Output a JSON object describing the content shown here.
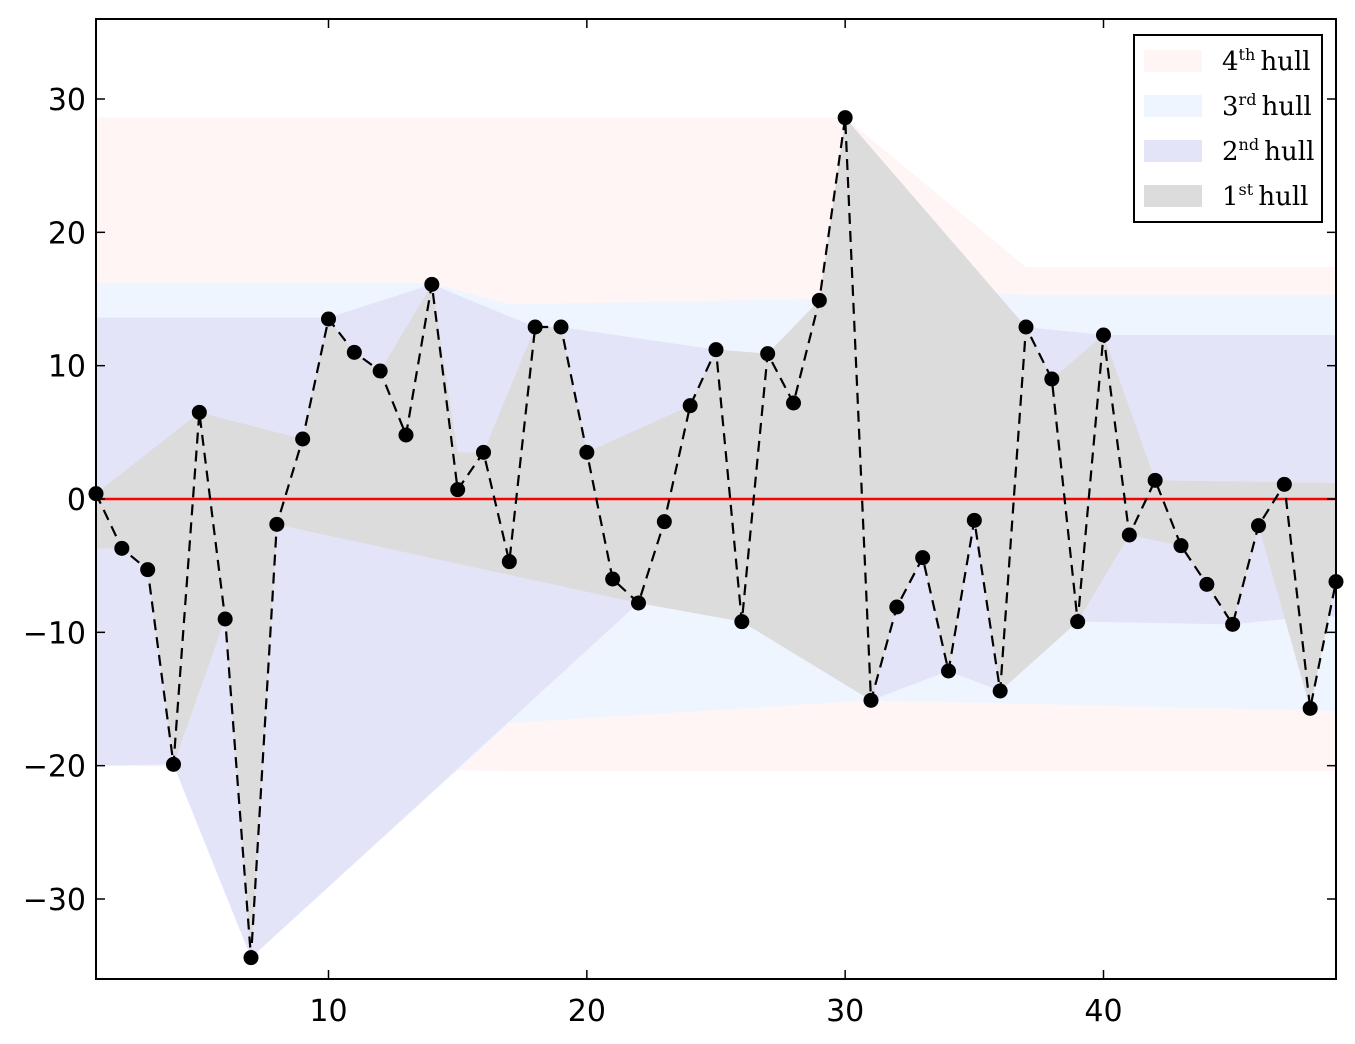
{
  "chart_data": {
    "type": "line",
    "title": "",
    "xlabel": "",
    "ylabel": "",
    "xlim": [
      1,
      49
    ],
    "ylim": [
      -36,
      36
    ],
    "xticks": [
      10,
      20,
      30,
      40
    ],
    "yticks": [
      -30,
      -20,
      -10,
      0,
      10,
      20,
      30
    ],
    "xtick_labels": [
      "10",
      "20",
      "30",
      "40"
    ],
    "ytick_labels": [
      "−30",
      "−20",
      "−10",
      "0",
      "10",
      "20",
      "30"
    ],
    "grid": false,
    "legend_position": "top-right",
    "zero_line": {
      "y": 0,
      "color": "#ff0000"
    },
    "series": [
      {
        "name": "",
        "style": "dashed line with circle markers",
        "color": "#000000",
        "x": [
          1,
          2,
          3,
          4,
          5,
          6,
          7,
          8,
          9,
          10,
          11,
          12,
          13,
          14,
          15,
          16,
          17,
          18,
          19,
          20,
          21,
          22,
          23,
          24,
          25,
          26,
          27,
          28,
          29,
          30,
          31,
          32,
          33,
          34,
          35,
          36,
          37,
          38,
          39,
          40,
          41,
          42,
          43,
          44,
          45,
          46,
          47,
          48,
          49
        ],
        "y": [
          0.4,
          -3.7,
          -5.3,
          -19.9,
          6.5,
          -9.0,
          -34.4,
          -1.9,
          4.5,
          13.5,
          11.0,
          9.6,
          4.8,
          16.1,
          0.7,
          3.5,
          -4.7,
          12.9,
          12.9,
          3.5,
          -6.0,
          -7.8,
          -1.7,
          7.0,
          11.2,
          -9.2,
          10.9,
          7.2,
          14.9,
          28.6,
          -15.1,
          -8.1,
          -4.4,
          -12.9,
          -1.6,
          -14.4,
          12.9,
          9.0,
          -9.2,
          12.3,
          -2.7,
          1.4,
          -3.5,
          -6.4,
          -9.4,
          -2.0,
          1.1,
          -15.7,
          -6.2
        ]
      }
    ],
    "hulls": [
      {
        "name": "4th hull",
        "label_number": "4",
        "label_sup": "th",
        "label_word": "hull",
        "color": "#fff5f5",
        "upper": [
          [
            1,
            28.6
          ],
          [
            30,
            28.6
          ],
          [
            37,
            17.4
          ],
          [
            49,
            17.4
          ]
        ],
        "lower": [
          [
            1,
            -20.0
          ],
          [
            17,
            -20.4
          ],
          [
            49,
            -20.4
          ]
        ]
      },
      {
        "name": "3rd hull",
        "label_number": "3",
        "label_sup": "rd",
        "label_word": "hull",
        "color": "#eef5ff",
        "upper": [
          [
            1,
            16.2
          ],
          [
            14,
            16.2
          ],
          [
            17,
            14.6
          ],
          [
            29,
            15.0
          ],
          [
            30,
            16.0
          ],
          [
            37,
            15.3
          ],
          [
            49,
            15.3
          ]
        ],
        "lower": [
          [
            1,
            -20.0
          ],
          [
            4,
            -20.0
          ],
          [
            7,
            -34.4
          ],
          [
            17,
            -16.8
          ],
          [
            31,
            -15.1
          ],
          [
            49,
            -15.9
          ]
        ]
      },
      {
        "name": "2nd hull",
        "label_number": "2",
        "label_sup": "nd",
        "label_word": "hull",
        "color": "#e4e4f8",
        "upper": [
          [
            1,
            13.6
          ],
          [
            10,
            13.6
          ],
          [
            14,
            16.1
          ],
          [
            18,
            12.9
          ],
          [
            19,
            12.9
          ],
          [
            25,
            11.2
          ],
          [
            27,
            10.9
          ],
          [
            29,
            14.9
          ],
          [
            30,
            16.0
          ],
          [
            37,
            12.9
          ],
          [
            40,
            12.3
          ],
          [
            49,
            12.3
          ]
        ],
        "lower": [
          [
            1,
            -20.0
          ],
          [
            4,
            -19.9
          ],
          [
            7,
            -34.4
          ],
          [
            22,
            -7.8
          ],
          [
            26,
            -9.2
          ],
          [
            31,
            -15.1
          ],
          [
            34,
            -12.9
          ],
          [
            36,
            -14.4
          ],
          [
            39,
            -9.2
          ],
          [
            45,
            -9.4
          ],
          [
            48,
            -8.8
          ],
          [
            49,
            -8.8
          ]
        ]
      },
      {
        "name": "1st hull",
        "label_number": "1",
        "label_sup": "st",
        "label_word": "hull",
        "color": "#dcdcdc",
        "upper": [
          [
            1,
            0.4
          ],
          [
            5,
            6.5
          ],
          [
            9,
            4.5
          ],
          [
            10,
            13.5
          ],
          [
            11,
            11.0
          ],
          [
            12,
            9.6
          ],
          [
            14,
            16.1
          ],
          [
            15,
            3.5
          ],
          [
            16,
            3.5
          ],
          [
            18,
            12.9
          ],
          [
            19,
            12.9
          ],
          [
            20,
            3.5
          ],
          [
            24,
            7.0
          ],
          [
            25,
            11.2
          ],
          [
            27,
            10.9
          ],
          [
            29,
            14.9
          ],
          [
            30,
            28.6
          ],
          [
            37,
            12.9
          ],
          [
            38,
            9.0
          ],
          [
            40,
            12.3
          ],
          [
            42,
            1.4
          ],
          [
            49,
            1.2
          ]
        ],
        "lower": [
          [
            1,
            -3.7
          ],
          [
            2,
            -3.7
          ],
          [
            3,
            -5.3
          ],
          [
            4,
            -19.9
          ],
          [
            6,
            -9.0
          ],
          [
            7,
            -34.4
          ],
          [
            8,
            -1.9
          ],
          [
            22,
            -7.8
          ],
          [
            26,
            -9.2
          ],
          [
            31,
            -15.1
          ],
          [
            32,
            -8.1
          ],
          [
            33,
            -4.4
          ],
          [
            34,
            -12.9
          ],
          [
            35,
            -1.6
          ],
          [
            36,
            -14.4
          ],
          [
            39,
            -9.2
          ],
          [
            41,
            -2.7
          ],
          [
            43,
            -3.5
          ],
          [
            45,
            -9.4
          ],
          [
            46,
            -2.0
          ],
          [
            48,
            -15.7
          ],
          [
            49,
            -6.2
          ]
        ]
      }
    ]
  }
}
